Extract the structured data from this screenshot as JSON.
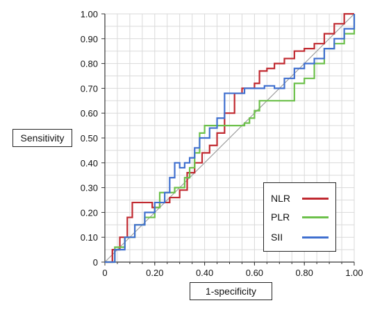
{
  "chart_data": {
    "type": "line",
    "title": "",
    "xlabel": "1-specificity",
    "ylabel": "Sensitivity",
    "xlim": [
      0,
      1
    ],
    "ylim": [
      0,
      1
    ],
    "x_ticks": [
      "0",
      "0.20",
      "0.40",
      "0.60",
      "0.80",
      "1.00"
    ],
    "y_ticks": [
      "0",
      "0.10",
      "0.20",
      "0.30",
      "0.40",
      "0.50",
      "0.60",
      "0.70",
      "0.80",
      "0.90",
      "1.00"
    ],
    "grid": true,
    "legend_position": "bottom-right",
    "reference_line": {
      "x": [
        0,
        1
      ],
      "y": [
        0,
        1
      ],
      "color": "#9e9e9e"
    },
    "series": [
      {
        "name": "NLR",
        "color": "#c0282f",
        "x": [
          0,
          0.03,
          0.06,
          0.09,
          0.11,
          0.16,
          0.19,
          0.22,
          0.26,
          0.3,
          0.33,
          0.36,
          0.39,
          0.42,
          0.45,
          0.48,
          0.52,
          0.55,
          0.58,
          0.6,
          0.62,
          0.65,
          0.68,
          0.72,
          0.76,
          0.8,
          0.84,
          0.88,
          0.92,
          0.96,
          1.0
        ],
        "y": [
          0,
          0.05,
          0.1,
          0.18,
          0.24,
          0.24,
          0.22,
          0.24,
          0.26,
          0.29,
          0.36,
          0.4,
          0.44,
          0.47,
          0.52,
          0.6,
          0.68,
          0.7,
          0.7,
          0.72,
          0.77,
          0.78,
          0.8,
          0.82,
          0.85,
          0.86,
          0.88,
          0.92,
          0.96,
          1.0,
          1.0
        ]
      },
      {
        "name": "PLR",
        "color": "#6cc04a",
        "x": [
          0,
          0.04,
          0.08,
          0.12,
          0.16,
          0.2,
          0.22,
          0.26,
          0.28,
          0.32,
          0.34,
          0.36,
          0.38,
          0.4,
          0.44,
          0.48,
          0.52,
          0.56,
          0.58,
          0.6,
          0.62,
          0.66,
          0.72,
          0.76,
          0.8,
          0.84,
          0.88,
          0.92,
          0.96,
          1.0
        ],
        "y": [
          0,
          0.06,
          0.1,
          0.15,
          0.18,
          0.22,
          0.28,
          0.28,
          0.3,
          0.34,
          0.38,
          0.44,
          0.52,
          0.55,
          0.55,
          0.55,
          0.55,
          0.56,
          0.58,
          0.61,
          0.65,
          0.65,
          0.65,
          0.72,
          0.74,
          0.8,
          0.86,
          0.88,
          0.92,
          1.0
        ]
      },
      {
        "name": "SII",
        "color": "#3f6fcf",
        "x": [
          0,
          0.04,
          0.08,
          0.12,
          0.16,
          0.2,
          0.24,
          0.26,
          0.28,
          0.3,
          0.32,
          0.34,
          0.36,
          0.38,
          0.42,
          0.45,
          0.48,
          0.52,
          0.56,
          0.6,
          0.64,
          0.68,
          0.72,
          0.76,
          0.8,
          0.84,
          0.88,
          0.92,
          0.96,
          1.0
        ],
        "y": [
          0,
          0.05,
          0.1,
          0.15,
          0.2,
          0.24,
          0.28,
          0.34,
          0.4,
          0.38,
          0.4,
          0.42,
          0.46,
          0.5,
          0.54,
          0.58,
          0.68,
          0.68,
          0.7,
          0.7,
          0.71,
          0.7,
          0.74,
          0.78,
          0.8,
          0.82,
          0.86,
          0.9,
          0.94,
          1.0
        ]
      }
    ]
  }
}
